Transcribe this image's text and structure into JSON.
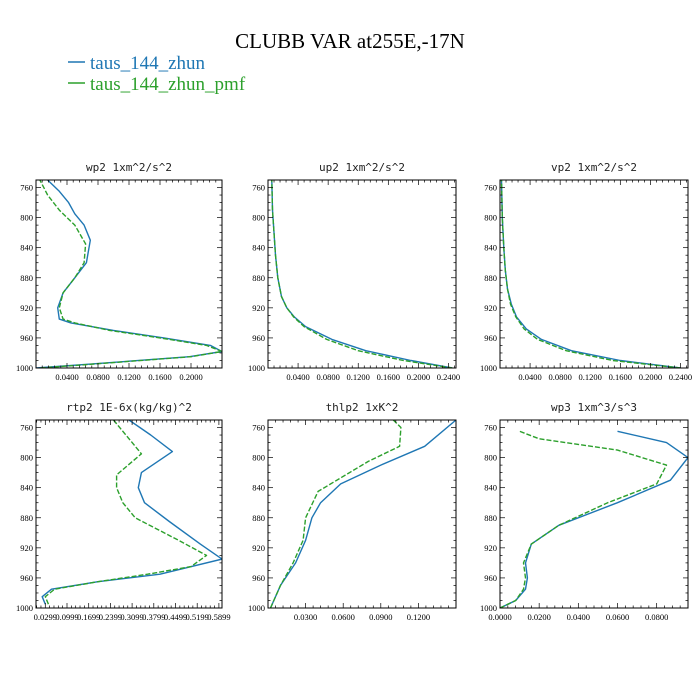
{
  "figure": {
    "title": "CLUBB VAR at255E,-17N",
    "legend": [
      {
        "label": "taus_144_zhun",
        "color": "#1f77b4",
        "dash": "solid"
      },
      {
        "label": "taus_144_zhun_pmf",
        "color": "#2ca02c",
        "dash": "dashed"
      }
    ]
  },
  "chart_data": [
    {
      "type": "line",
      "title": "wp2  1xm^2/s^2",
      "xlim": [
        0.0,
        0.24
      ],
      "xticks": [
        0.04,
        0.08,
        0.12,
        0.16,
        0.2
      ],
      "xtick_labels": [
        "0.0400",
        "0.0800",
        "0.1200",
        "0.1600",
        "0.2000"
      ],
      "ylim": [
        1000,
        750
      ],
      "yticks": [
        760,
        800,
        840,
        880,
        920,
        960,
        1000
      ],
      "ytick_labels": [
        "760",
        "800",
        "840",
        "880",
        "920",
        "960",
        "1000"
      ],
      "series": [
        {
          "name": "taus_144_zhun",
          "color": "#1f77b4",
          "dash": "solid",
          "x": [
            0.0,
            0.068,
            0.198,
            0.24,
            0.225,
            0.165,
            0.1,
            0.045,
            0.03,
            0.028,
            0.035,
            0.05,
            0.065,
            0.07,
            0.062,
            0.05,
            0.042,
            0.03,
            0.015
          ],
          "y": [
            1000,
            995,
            985,
            978,
            970,
            960,
            950,
            940,
            935,
            920,
            900,
            880,
            860,
            830,
            810,
            795,
            780,
            765,
            750
          ]
        },
        {
          "name": "taus_144_zhun_pmf",
          "color": "#2ca02c",
          "dash": "dashed",
          "x": [
            0.006,
            0.072,
            0.2,
            0.24,
            0.22,
            0.16,
            0.095,
            0.05,
            0.035,
            0.03,
            0.035,
            0.05,
            0.062,
            0.064,
            0.05,
            0.03,
            0.015,
            0.005
          ],
          "y": [
            1000,
            995,
            985,
            978,
            970,
            960,
            950,
            940,
            935,
            920,
            900,
            880,
            860,
            835,
            810,
            790,
            770,
            750
          ]
        }
      ]
    },
    {
      "type": "line",
      "title": "up2  1xm^2/s^2",
      "xlim": [
        0.0,
        0.25
      ],
      "xticks": [
        0.04,
        0.08,
        0.12,
        0.16,
        0.2,
        0.24
      ],
      "xtick_labels": [
        "0.0400",
        "0.0800",
        "0.1200",
        "0.1600",
        "0.2000",
        "0.2400"
      ],
      "ylim": [
        1000,
        750
      ],
      "yticks": [
        760,
        800,
        840,
        880,
        920,
        960,
        1000
      ],
      "ytick_labels": [
        "760",
        "800",
        "840",
        "880",
        "920",
        "960",
        "1000"
      ],
      "series": [
        {
          "name": "taus_144_zhun",
          "color": "#1f77b4",
          "dash": "solid",
          "x": [
            0.245,
            0.19,
            0.13,
            0.085,
            0.05,
            0.035,
            0.025,
            0.018,
            0.013,
            0.01,
            0.008,
            0.006,
            0.005
          ],
          "y": [
            1000,
            990,
            977,
            962,
            945,
            932,
            920,
            905,
            880,
            850,
            820,
            790,
            750
          ]
        },
        {
          "name": "taus_144_zhun_pmf",
          "color": "#2ca02c",
          "dash": "dashed",
          "x": [
            0.245,
            0.18,
            0.12,
            0.078,
            0.048,
            0.034,
            0.025,
            0.018,
            0.013,
            0.01,
            0.008,
            0.006,
            0.005
          ],
          "y": [
            1000,
            990,
            977,
            962,
            945,
            932,
            920,
            905,
            880,
            850,
            820,
            790,
            750
          ]
        }
      ]
    },
    {
      "type": "line",
      "title": "vp2  1xm^2/s^2",
      "xlim": [
        0.0,
        0.25
      ],
      "xticks": [
        0.04,
        0.08,
        0.12,
        0.16,
        0.2,
        0.24
      ],
      "xtick_labels": [
        "0.0400",
        "0.0800",
        "0.1200",
        "0.1600",
        "0.2000",
        "0.2400"
      ],
      "ylim": [
        1000,
        750
      ],
      "yticks": [
        760,
        800,
        840,
        880,
        920,
        960,
        1000
      ],
      "ytick_labels": [
        "760",
        "800",
        "840",
        "880",
        "920",
        "960",
        "1000"
      ],
      "series": [
        {
          "name": "taus_144_zhun",
          "color": "#1f77b4",
          "dash": "solid",
          "x": [
            0.24,
            0.16,
            0.095,
            0.055,
            0.035,
            0.022,
            0.015,
            0.01,
            0.007,
            0.005,
            0.003,
            0.002
          ],
          "y": [
            1000,
            990,
            977,
            962,
            948,
            932,
            915,
            895,
            870,
            840,
            800,
            750
          ]
        },
        {
          "name": "taus_144_zhun_pmf",
          "color": "#2ca02c",
          "dash": "dashed",
          "x": [
            0.24,
            0.15,
            0.088,
            0.05,
            0.032,
            0.021,
            0.014,
            0.01,
            0.007,
            0.005,
            0.003,
            0.002
          ],
          "y": [
            1000,
            990,
            977,
            962,
            948,
            932,
            915,
            895,
            870,
            840,
            800,
            750
          ]
        }
      ]
    },
    {
      "type": "line",
      "title": "rtp2  1E-6x(kg/kg)^2",
      "xlim": [
        0.0,
        0.6
      ],
      "xticks": [
        0.03,
        0.1,
        0.17,
        0.24,
        0.31,
        0.38,
        0.45,
        0.52,
        0.59
      ],
      "xtick_labels": [
        "0.0299",
        "0.0999",
        "0.1699",
        "0.2399",
        "0.3099",
        "0.3799",
        "0.4499",
        "0.5199",
        "0.5899"
      ],
      "ylim": [
        1000,
        750
      ],
      "yticks": [
        760,
        800,
        840,
        880,
        920,
        960,
        1000
      ],
      "ytick_labels": [
        "760",
        "800",
        "840",
        "880",
        "920",
        "960",
        "1000"
      ],
      "series": [
        {
          "name": "taus_144_zhun",
          "color": "#1f77b4",
          "dash": "solid",
          "x": [
            0.03,
            0.02,
            0.05,
            0.2,
            0.4,
            0.6,
            0.53,
            0.43,
            0.35,
            0.33,
            0.34,
            0.44,
            0.37,
            0.3
          ],
          "y": [
            995,
            985,
            975,
            965,
            955,
            935,
            915,
            885,
            860,
            840,
            820,
            792,
            770,
            750
          ]
        },
        {
          "name": "taus_144_zhun_pmf",
          "color": "#2ca02c",
          "dash": "dashed",
          "x": [
            0.04,
            0.03,
            0.06,
            0.2,
            0.36,
            0.5,
            0.55,
            0.46,
            0.32,
            0.28,
            0.26,
            0.26,
            0.34,
            0.25
          ],
          "y": [
            995,
            985,
            975,
            965,
            955,
            945,
            930,
            910,
            880,
            860,
            840,
            823,
            795,
            750
          ]
        }
      ]
    },
    {
      "type": "line",
      "title": "thlp2  1xK^2",
      "xlim": [
        0.0,
        0.15
      ],
      "xticks": [
        0.03,
        0.06,
        0.09,
        0.12
      ],
      "xtick_labels": [
        "0.0300",
        "0.0600",
        "0.0900",
        "0.1200"
      ],
      "ylim": [
        1000,
        750
      ],
      "yticks": [
        760,
        800,
        840,
        880,
        920,
        960,
        1000
      ],
      "ytick_labels": [
        "760",
        "800",
        "840",
        "880",
        "920",
        "960",
        "1000"
      ],
      "series": [
        {
          "name": "taus_144_zhun",
          "color": "#1f77b4",
          "dash": "solid",
          "x": [
            0.002,
            0.01,
            0.022,
            0.03,
            0.035,
            0.042,
            0.058,
            0.09,
            0.125,
            0.15
          ],
          "y": [
            1000,
            970,
            940,
            910,
            880,
            860,
            835,
            810,
            785,
            750
          ]
        },
        {
          "name": "taus_144_zhun_pmf",
          "color": "#2ca02c",
          "dash": "dashed",
          "x": [
            0.002,
            0.01,
            0.02,
            0.028,
            0.03,
            0.04,
            0.08,
            0.105,
            0.106,
            0.1
          ],
          "y": [
            1000,
            970,
            940,
            910,
            880,
            845,
            805,
            785,
            760,
            750
          ]
        }
      ]
    },
    {
      "type": "line",
      "title": "wp3  1xm^3/s^3",
      "xlim": [
        0.0,
        0.096
      ],
      "xticks": [
        0.0,
        0.02,
        0.04,
        0.06,
        0.08
      ],
      "xtick_labels": [
        "0.0000",
        "0.0200",
        "0.0400",
        "0.0600",
        "0.0800"
      ],
      "ylim": [
        1000,
        750
      ],
      "yticks": [
        760,
        800,
        840,
        880,
        920,
        960,
        1000
      ],
      "ytick_labels": [
        "760",
        "800",
        "840",
        "880",
        "920",
        "960",
        "1000"
      ],
      "series": [
        {
          "name": "taus_144_zhun",
          "color": "#1f77b4",
          "dash": "solid",
          "x": [
            0.0,
            0.008,
            0.013,
            0.014,
            0.013,
            0.016,
            0.03,
            0.06,
            0.087,
            0.096,
            0.085,
            0.06
          ],
          "y": [
            1000,
            990,
            975,
            960,
            940,
            915,
            890,
            860,
            830,
            800,
            780,
            765
          ]
        },
        {
          "name": "taus_144_zhun_pmf",
          "color": "#2ca02c",
          "dash": "dashed",
          "x": [
            0.0,
            0.008,
            0.012,
            0.013,
            0.012,
            0.016,
            0.03,
            0.055,
            0.08,
            0.085,
            0.06,
            0.02,
            0.01
          ],
          "y": [
            1000,
            990,
            975,
            960,
            940,
            915,
            890,
            860,
            835,
            810,
            790,
            775,
            765
          ]
        }
      ]
    }
  ]
}
